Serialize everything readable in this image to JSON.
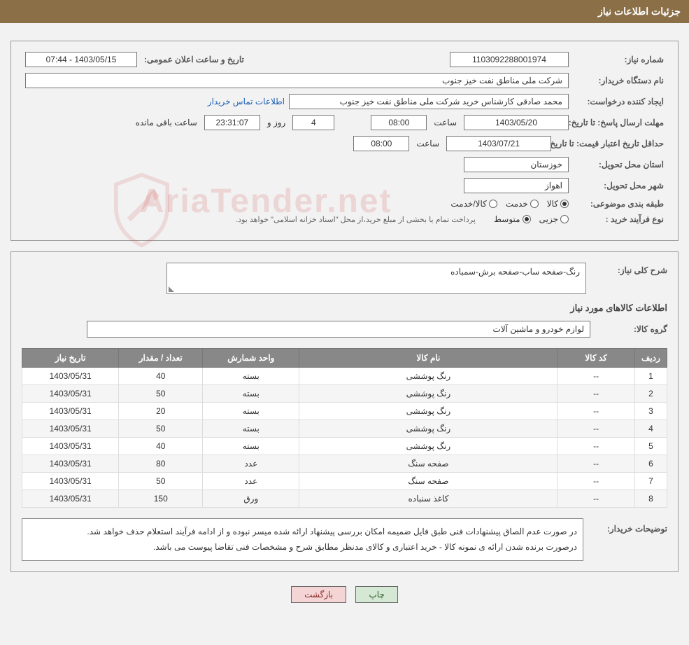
{
  "header": {
    "title": "جزئیات اطلاعات نیاز"
  },
  "fields": {
    "need_number_label": "شماره نیاز:",
    "need_number": "1103092288001974",
    "announce_label": "تاریخ و ساعت اعلان عمومی:",
    "announce_value": "1403/05/15 - 07:44",
    "buyer_org_label": "نام دستگاه خریدار:",
    "buyer_org": "شرکت ملی مناطق نفت خیز جنوب",
    "requester_label": "ایجاد کننده درخواست:",
    "requester": "محمد صادقی   کارشناس خرید  شرکت ملی مناطق نفت خیز جنوب",
    "contact_link": "اطلاعات تماس خریدار",
    "deadline_label": "مهلت ارسال پاسخ: تا تاریخ:",
    "deadline_date": "1403/05/20",
    "time_label": "ساعت",
    "deadline_time": "08:00",
    "days": "4",
    "days_label": "روز و",
    "countdown": "23:31:07",
    "remaining_label": "ساعت باقی مانده",
    "min_validity_label": "حداقل تاریخ اعتبار قیمت: تا تاریخ:",
    "min_validity_date": "1403/07/21",
    "min_validity_time": "08:00",
    "province_label": "استان محل تحویل:",
    "province": "خوزستان",
    "city_label": "شهر محل تحویل:",
    "city": "اهواز",
    "category_label": "طبقه بندی موضوعی:",
    "cat_goods": "کالا",
    "cat_service": "خدمت",
    "cat_both": "کالا/خدمت",
    "process_label": "نوع فرآیند خرید :",
    "proc_partial": "جزیی",
    "proc_medium": "متوسط",
    "process_note": "پرداخت تمام یا بخشی از مبلغ خرید،از محل \"اسناد خزانه اسلامی\" خواهد بود."
  },
  "desc": {
    "title_label": "شرح کلی نیاز:",
    "text": "رنگ-صفحه ساب-صفحه برش-سمباده"
  },
  "goods": {
    "section_title": "اطلاعات کالاهای مورد نیاز",
    "group_label": "گروه کالا:",
    "group_value": "لوازم خودرو و ماشین آلات"
  },
  "table": {
    "headers": {
      "row": "ردیف",
      "code": "کد کالا",
      "name": "نام کالا",
      "unit": "واحد شمارش",
      "qty": "تعداد / مقدار",
      "date": "تاریخ نیاز"
    },
    "rows": [
      {
        "row": "1",
        "code": "--",
        "name": "رنگ پوششی",
        "unit": "بسته",
        "qty": "40",
        "date": "1403/05/31"
      },
      {
        "row": "2",
        "code": "--",
        "name": "رنگ پوششی",
        "unit": "بسته",
        "qty": "50",
        "date": "1403/05/31"
      },
      {
        "row": "3",
        "code": "--",
        "name": "رنگ پوششی",
        "unit": "بسته",
        "qty": "20",
        "date": "1403/05/31"
      },
      {
        "row": "4",
        "code": "--",
        "name": "رنگ پوششی",
        "unit": "بسته",
        "qty": "50",
        "date": "1403/05/31"
      },
      {
        "row": "5",
        "code": "--",
        "name": "رنگ پوششی",
        "unit": "بسته",
        "qty": "40",
        "date": "1403/05/31"
      },
      {
        "row": "6",
        "code": "--",
        "name": "صفحه سنگ",
        "unit": "عدد",
        "qty": "80",
        "date": "1403/05/31"
      },
      {
        "row": "7",
        "code": "--",
        "name": "صفحه سنگ",
        "unit": "عدد",
        "qty": "50",
        "date": "1403/05/31"
      },
      {
        "row": "8",
        "code": "--",
        "name": "کاغذ سنباده",
        "unit": "ورق",
        "qty": "150",
        "date": "1403/05/31"
      }
    ]
  },
  "notes": {
    "label": "توضیحات خریدار:",
    "line1": "در صورت عدم الصاق پیشنهادات فنی طبق فایل ضمیمه امکان بررسی پیشنهاد ارائه شده میسر نبوده و از ادامه فرآیند استعلام حذف خواهد شد.",
    "line2": "درصورت برنده شدن ارائه ی نمونه کالا - خرید اعتباری و کالای مدنظر مطابق شرح و مشخصات فنی تقاضا پیوست می باشد."
  },
  "buttons": {
    "print": "چاپ",
    "back": "بازگشت"
  },
  "colors": {
    "header_bg": "#8b6f47",
    "table_header_bg": "#888888",
    "btn_print_bg": "#d4e8d4",
    "btn_back_bg": "#f4d4d4",
    "link_color": "#1a5fb4"
  }
}
